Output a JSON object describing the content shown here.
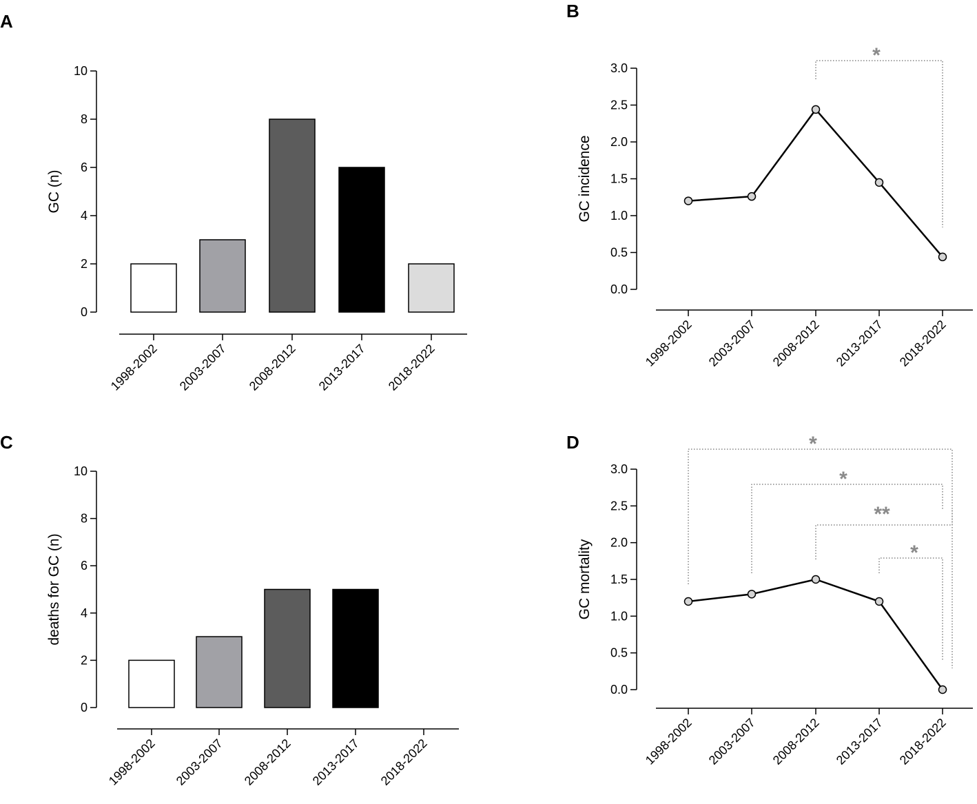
{
  "chart_data": [
    {
      "panel": "A",
      "type": "bar",
      "categories": [
        "1998-2002",
        "2003-2007",
        "2008-2012",
        "2013-2017",
        "2018-2022"
      ],
      "values": [
        2,
        3,
        8,
        6,
        2
      ],
      "colors": [
        "#ffffff",
        "#a1a1a6",
        "#5c5c5c",
        "#000000",
        "#dcdcdc"
      ],
      "ylabel": "GC (n)",
      "ylim": [
        0,
        10
      ],
      "yticks": [
        "0",
        "2",
        "4",
        "6",
        "8",
        "10"
      ],
      "ytick_values": [
        0,
        2,
        4,
        6,
        8,
        10
      ]
    },
    {
      "panel": "B",
      "type": "line",
      "categories": [
        "1998-2002",
        "2003-2007",
        "2008-2012",
        "2013-2017",
        "2018-2022"
      ],
      "values": [
        1.2,
        1.26,
        2.44,
        1.45,
        0.44
      ],
      "ylabel": "GC incidence",
      "ylim": [
        0,
        3.0
      ],
      "yticks": [
        "0.0",
        "0.5",
        "1.0",
        "1.5",
        "2.0",
        "2.5",
        "3.0"
      ],
      "ytick_values": [
        0,
        0.5,
        1.0,
        1.5,
        2.0,
        2.5,
        3.0
      ],
      "significance": [
        {
          "from": 2,
          "to": 4,
          "label": "*"
        }
      ]
    },
    {
      "panel": "C",
      "type": "bar",
      "categories": [
        "1998-2002",
        "2003-2007",
        "2008-2012",
        "2013-2017",
        "2018-2022"
      ],
      "values": [
        2,
        3,
        5,
        5,
        0
      ],
      "colors": [
        "#ffffff",
        "#a1a1a6",
        "#5c5c5c",
        "#000000",
        "#dcdcdc"
      ],
      "ylabel": "deaths for GC (n)",
      "ylim": [
        0,
        10
      ],
      "yticks": [
        "0",
        "2",
        "4",
        "6",
        "8",
        "10"
      ],
      "ytick_values": [
        0,
        2,
        4,
        6,
        8,
        10
      ]
    },
    {
      "panel": "D",
      "type": "line",
      "categories": [
        "1998-2002",
        "2003-2007",
        "2008-2012",
        "2013-2017",
        "2018-2022"
      ],
      "values": [
        1.2,
        1.3,
        1.5,
        1.2,
        0.0
      ],
      "ylabel": "GC mortality",
      "ylim": [
        0,
        3.0
      ],
      "yticks": [
        "0.0",
        "0.5",
        "1.0",
        "1.5",
        "2.0",
        "2.5",
        "3.0"
      ],
      "ytick_values": [
        0,
        0.5,
        1.0,
        1.5,
        2.0,
        2.5,
        3.0
      ],
      "significance": [
        {
          "from": 0,
          "to": 4,
          "label": "*"
        },
        {
          "from": 1,
          "to": 4,
          "label": "*"
        },
        {
          "from": 2,
          "to": 4,
          "label": "**"
        },
        {
          "from": 3,
          "to": 4,
          "label": "*"
        }
      ]
    }
  ],
  "colors": {
    "axis": "#000000",
    "marker_fill": "#d4d4d4",
    "significance": "#8a8a8a"
  }
}
